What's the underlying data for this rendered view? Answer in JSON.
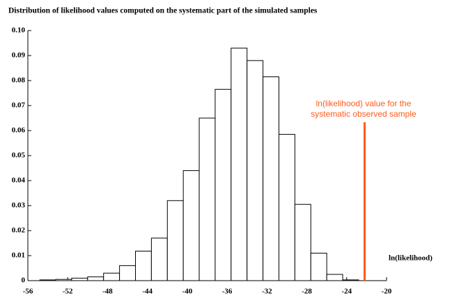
{
  "chart_data": {
    "type": "histogram",
    "title": "Distribution of likelihood values computed on the systematic part of the simulated samples",
    "x_label": "ln(likelihood)",
    "bins": [
      -54.8,
      -53.2,
      -51.6,
      -50.0,
      -48.4,
      -46.8,
      -45.2,
      -43.6,
      -42.0,
      -40.4,
      -38.8,
      -37.2,
      -35.6,
      -34.0,
      -32.4,
      -30.8,
      -29.2,
      -27.6,
      -26.0,
      -24.4,
      -22.8
    ],
    "values": [
      0.0003,
      0.0005,
      0.001,
      0.0015,
      0.003,
      0.006,
      0.0118,
      0.017,
      0.032,
      0.044,
      0.065,
      0.0765,
      0.093,
      0.088,
      0.0815,
      0.0585,
      0.0305,
      0.011,
      0.0025,
      0.0003
    ],
    "color": "#ffffff",
    "edge_color": "#000000",
    "xlim": [
      -56,
      -20
    ],
    "xticks": [
      -56,
      -52,
      -48,
      -44,
      -40,
      -36,
      -32,
      -28,
      -24,
      -20
    ],
    "ylim": [
      0,
      0.1
    ],
    "yticks": [
      0,
      0.01,
      0.02,
      0.03,
      0.04,
      0.05,
      0.06,
      0.07,
      0.08,
      0.09,
      {
        "value": 0.1,
        "label": "0.10"
      }
    ],
    "observed": {
      "value": -22.2,
      "color": "#ff5a1a",
      "label": [
        "ln(likelihood) value for the",
        "systematic observed sample"
      ]
    }
  }
}
